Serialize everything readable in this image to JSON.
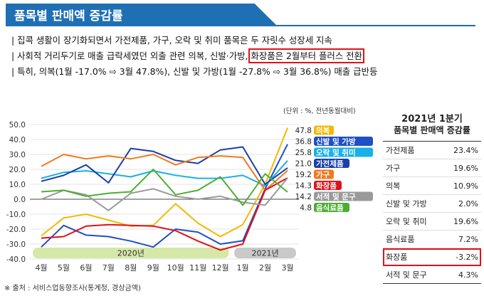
{
  "header": {
    "title": "품목별 판매액 증감률"
  },
  "bullets": [
    "| 집콕 생활이 장기화되면서 가전제품, 가구, 오락 및 취미 품목은 두 자릿수 성장세 지속",
    "| 사회적 거리두기로 매출 급락세였던 외출 관련 의복, 신발·가방, ",
    "| 특히,  의복(1월 -17.0% ⇨ 3월 47.8%), 신발 및 가방(1월 -27.8% ⇨ 3월 36.8%) 매출 급반등"
  ],
  "bullet_highlight": "화장품은 2월부터 플러스 전환",
  "unit_note": "(단위 : %, 전년동월대비)",
  "source": "※ 출처 : 서비스업동향조사(통계청, 경상금액)",
  "table": {
    "title1": "2021년 1분기",
    "title2": "품목별 판매액 증감률",
    "rows": [
      {
        "label": "가전제품",
        "value": "23.4%"
      },
      {
        "label": "가구",
        "value": "19.6%"
      },
      {
        "label": "의복",
        "value": "10.9%"
      },
      {
        "label": "신발 및 가방",
        "value": "2.0%"
      },
      {
        "label": "오락 및 취미",
        "value": "19.6%"
      },
      {
        "label": "음식료품",
        "value": "7.2%"
      },
      {
        "label": "화장품",
        "value": "-3.2%"
      },
      {
        "label": "서적 및 문구",
        "value": "4.3%"
      }
    ],
    "highlight_row": "화장품",
    "highlight_color": "#e0111a"
  },
  "chart_data": {
    "type": "line",
    "x": [
      "4월",
      "5월",
      "6월",
      "7월",
      "8월",
      "9월",
      "10월",
      "11월",
      "12월",
      "1월",
      "2월",
      "3월"
    ],
    "year_bands": [
      {
        "label": "2020년",
        "from": "4월",
        "to": "12월",
        "color": "#d5e8a8"
      },
      {
        "label": "2021년",
        "from": "1월",
        "to": "3월",
        "color": "#c9c9c9"
      }
    ],
    "ylim": [
      -40,
      50
    ],
    "yticks": [
      -40,
      -30,
      -20,
      -10,
      0,
      10,
      20,
      30,
      40,
      50
    ],
    "ytick_labels": [
      "-40.0",
      "-30.0",
      "-20.0",
      "-10.0",
      "0.0",
      "10.0",
      "20.0",
      "30.0",
      "40.0",
      "50.0"
    ],
    "series": [
      {
        "name": "의복",
        "color": "#f5b800",
        "end_label": "47.8",
        "values": [
          -24.5,
          -12.5,
          -10,
          -14,
          -18,
          -17.5,
          -3,
          -16,
          -25,
          -17,
          10,
          47.8
        ]
      },
      {
        "name": "신발 및 가방",
        "color": "#1f4fc4",
        "end_label": "36.8",
        "values": [
          -32,
          -17.5,
          -24,
          -25,
          -28,
          -32,
          -20,
          -22,
          -30,
          -27.8,
          7,
          36.8
        ]
      },
      {
        "name": "오락 및 취미",
        "color": "#1ab0e8",
        "end_label": "25.8",
        "values": [
          14,
          18,
          19,
          17,
          15,
          19,
          16,
          14,
          14,
          16,
          9,
          25.8
        ]
      },
      {
        "name": "가전제품",
        "color": "#1a3fa8",
        "end_label": "21.0",
        "values": [
          12,
          16,
          23,
          11,
          34,
          32,
          26,
          24,
          33,
          35,
          10,
          21
        ]
      },
      {
        "name": "가구",
        "color": "#f07a1e",
        "end_label": "19.2",
        "values": [
          22,
          30,
          27,
          29,
          27,
          30,
          23,
          28,
          29,
          28,
          6,
          19.2
        ]
      },
      {
        "name": "화장품",
        "color": "#e0111a",
        "end_label": "14.3",
        "values": [
          -26,
          -25,
          -18,
          -17,
          -17.5,
          -18,
          -21,
          -28,
          -34,
          -30,
          6,
          14.3
        ]
      },
      {
        "name": "서적 및 문구",
        "color": "#9a9a9a",
        "end_label": "14.2",
        "values": [
          0,
          6,
          3,
          -7.5,
          4,
          7,
          2,
          0,
          2,
          -2,
          -4,
          14.2
        ]
      },
      {
        "name": "음식료품",
        "color": "#4caf32",
        "end_label": "4.8",
        "values": [
          5,
          6,
          2,
          4,
          5,
          20,
          3,
          6,
          15,
          -4,
          17,
          4.8
        ]
      }
    ]
  }
}
